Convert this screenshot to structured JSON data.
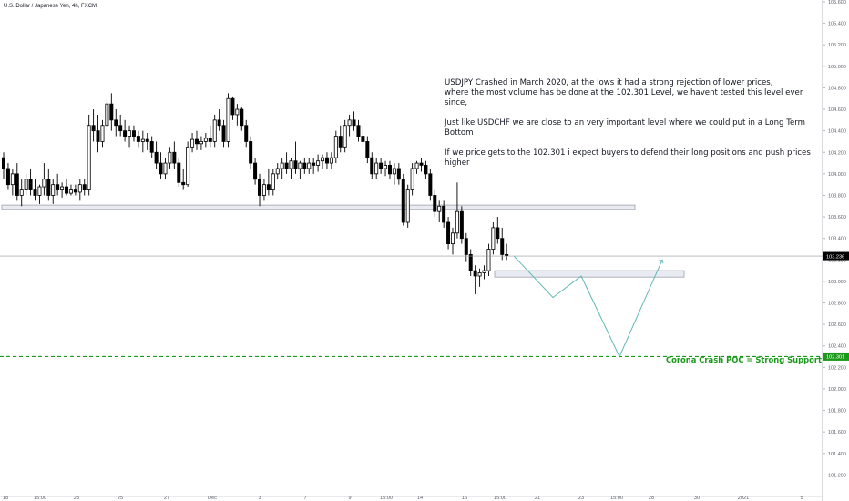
{
  "symbol_title": "U.S. Dollar / Japanese Yen, 4h, FXCM",
  "annotation": [
    "USDJPY Crashed in March 2020, at the lows it had a strong rejection of lower prices,\nwhere the most volume has be done at the 102.301 Level, we havent tested this level ever since,",
    "Just like USDCHF we are close to an very important level where we could put in a Long Term Bottom",
    "If we price gets to the 102.301 i expect buyers to defend their long positions and push prices higher"
  ],
  "support_label": "Corona Crash POC = Strong Support",
  "colors": {
    "candle": "#000000",
    "support": "#1a9a1a",
    "projection": "#5fb7b4",
    "zone_fill": "#e9ebf2",
    "zone_border": "#9aa0ab",
    "price_badge": "#000000",
    "support_badge": "#1a9a1a"
  },
  "chart_data": {
    "type": "candlestick",
    "title": "U.S. Dollar / Japanese Yen, 4h, FXCM",
    "ylim": [
      101.0,
      105.6
    ],
    "y_ticks": [
      "105.600",
      "105.400",
      "105.200",
      "105.000",
      "104.800",
      "104.600",
      "104.400",
      "104.200",
      "104.000",
      "103.800",
      "103.600",
      "103.400",
      "103.200",
      "103.000",
      "102.800",
      "102.600",
      "102.400",
      "102.200",
      "102.000",
      "101.800",
      "101.600",
      "101.400",
      "101.200"
    ],
    "x_ticks": [
      "18",
      "15:00",
      "23",
      "25",
      "27",
      "Dec",
      "3",
      "7",
      "9",
      "15:00",
      "14",
      "16",
      "15:00",
      "21",
      "23",
      "15:00",
      "28",
      "30",
      "2021",
      "5"
    ],
    "current_price": "103.236",
    "support_price": "102.301",
    "grid": false,
    "candles": [
      {
        "o": 104.15,
        "h": 104.2,
        "l": 103.95,
        "c": 104.05
      },
      {
        "o": 104.05,
        "h": 104.1,
        "l": 103.85,
        "c": 103.9
      },
      {
        "o": 103.9,
        "h": 104.05,
        "l": 103.8,
        "c": 104.0
      },
      {
        "o": 104.0,
        "h": 104.1,
        "l": 103.75,
        "c": 103.8
      },
      {
        "o": 103.8,
        "h": 103.95,
        "l": 103.7,
        "c": 103.85
      },
      {
        "o": 103.85,
        "h": 104.0,
        "l": 103.8,
        "c": 103.95
      },
      {
        "o": 103.95,
        "h": 104.05,
        "l": 103.8,
        "c": 103.85
      },
      {
        "o": 103.85,
        "h": 103.95,
        "l": 103.75,
        "c": 103.8
      },
      {
        "o": 103.8,
        "h": 103.9,
        "l": 103.72,
        "c": 103.88
      },
      {
        "o": 103.88,
        "h": 104.1,
        "l": 103.8,
        "c": 103.95
      },
      {
        "o": 103.95,
        "h": 104.05,
        "l": 103.75,
        "c": 103.8
      },
      {
        "o": 103.8,
        "h": 103.95,
        "l": 103.72,
        "c": 103.9
      },
      {
        "o": 103.9,
        "h": 104.0,
        "l": 103.8,
        "c": 103.85
      },
      {
        "o": 103.85,
        "h": 103.92,
        "l": 103.78,
        "c": 103.88
      },
      {
        "o": 103.88,
        "h": 103.95,
        "l": 103.8,
        "c": 103.82
      },
      {
        "o": 103.82,
        "h": 103.9,
        "l": 103.8,
        "c": 103.85
      },
      {
        "o": 103.85,
        "h": 103.9,
        "l": 103.8,
        "c": 103.83
      },
      {
        "o": 103.83,
        "h": 103.95,
        "l": 103.75,
        "c": 103.9
      },
      {
        "o": 103.9,
        "h": 103.95,
        "l": 103.8,
        "c": 103.85
      },
      {
        "o": 103.85,
        "h": 104.55,
        "l": 103.8,
        "c": 104.45
      },
      {
        "o": 104.45,
        "h": 104.6,
        "l": 104.3,
        "c": 104.4
      },
      {
        "o": 104.4,
        "h": 104.55,
        "l": 104.2,
        "c": 104.3
      },
      {
        "o": 104.3,
        "h": 104.5,
        "l": 104.25,
        "c": 104.45
      },
      {
        "o": 104.45,
        "h": 104.7,
        "l": 104.4,
        "c": 104.65
      },
      {
        "o": 104.65,
        "h": 104.75,
        "l": 104.4,
        "c": 104.5
      },
      {
        "o": 104.5,
        "h": 104.6,
        "l": 104.35,
        "c": 104.45
      },
      {
        "o": 104.45,
        "h": 104.55,
        "l": 104.35,
        "c": 104.4
      },
      {
        "o": 104.4,
        "h": 104.5,
        "l": 104.3,
        "c": 104.35
      },
      {
        "o": 104.35,
        "h": 104.45,
        "l": 104.25,
        "c": 104.4
      },
      {
        "o": 104.4,
        "h": 104.45,
        "l": 104.3,
        "c": 104.35
      },
      {
        "o": 104.35,
        "h": 104.4,
        "l": 104.25,
        "c": 104.3
      },
      {
        "o": 104.3,
        "h": 104.4,
        "l": 104.2,
        "c": 104.32
      },
      {
        "o": 104.32,
        "h": 104.38,
        "l": 104.22,
        "c": 104.3
      },
      {
        "o": 104.3,
        "h": 104.35,
        "l": 104.15,
        "c": 104.2
      },
      {
        "o": 104.2,
        "h": 104.3,
        "l": 104.05,
        "c": 104.1
      },
      {
        "o": 104.1,
        "h": 104.2,
        "l": 103.95,
        "c": 104.0
      },
      {
        "o": 104.0,
        "h": 104.15,
        "l": 103.95,
        "c": 104.1
      },
      {
        "o": 104.1,
        "h": 104.25,
        "l": 104.05,
        "c": 104.2
      },
      {
        "o": 104.2,
        "h": 104.3,
        "l": 104.05,
        "c": 104.1
      },
      {
        "o": 104.1,
        "h": 104.15,
        "l": 103.88,
        "c": 103.92
      },
      {
        "o": 103.92,
        "h": 104.05,
        "l": 103.85,
        "c": 103.9
      },
      {
        "o": 103.9,
        "h": 104.3,
        "l": 103.88,
        "c": 104.25
      },
      {
        "o": 104.25,
        "h": 104.38,
        "l": 104.2,
        "c": 104.32
      },
      {
        "o": 104.32,
        "h": 104.4,
        "l": 104.22,
        "c": 104.28
      },
      {
        "o": 104.28,
        "h": 104.35,
        "l": 104.22,
        "c": 104.3
      },
      {
        "o": 104.3,
        "h": 104.38,
        "l": 104.25,
        "c": 104.33
      },
      {
        "o": 104.33,
        "h": 104.45,
        "l": 104.25,
        "c": 104.3
      },
      {
        "o": 104.3,
        "h": 104.55,
        "l": 104.25,
        "c": 104.5
      },
      {
        "o": 104.5,
        "h": 104.6,
        "l": 104.4,
        "c": 104.45
      },
      {
        "o": 104.45,
        "h": 104.5,
        "l": 104.25,
        "c": 104.3
      },
      {
        "o": 104.3,
        "h": 104.75,
        "l": 104.25,
        "c": 104.7
      },
      {
        "o": 104.7,
        "h": 104.72,
        "l": 104.5,
        "c": 104.55
      },
      {
        "o": 104.55,
        "h": 104.65,
        "l": 104.45,
        "c": 104.6
      },
      {
        "o": 104.6,
        "h": 104.62,
        "l": 104.4,
        "c": 104.45
      },
      {
        "o": 104.45,
        "h": 104.5,
        "l": 104.25,
        "c": 104.3
      },
      {
        "o": 104.3,
        "h": 104.35,
        "l": 104.05,
        "c": 104.1
      },
      {
        "o": 104.1,
        "h": 104.15,
        "l": 103.9,
        "c": 103.95
      },
      {
        "o": 103.95,
        "h": 104.0,
        "l": 103.7,
        "c": 103.8
      },
      {
        "o": 103.8,
        "h": 103.95,
        "l": 103.75,
        "c": 103.9
      },
      {
        "o": 103.9,
        "h": 104.05,
        "l": 103.8,
        "c": 103.85
      },
      {
        "o": 103.85,
        "h": 104.05,
        "l": 103.8,
        "c": 104.0
      },
      {
        "o": 104.0,
        "h": 104.1,
        "l": 103.95,
        "c": 104.05
      },
      {
        "o": 104.05,
        "h": 104.15,
        "l": 103.95,
        "c": 104.1
      },
      {
        "o": 104.1,
        "h": 104.2,
        "l": 104.0,
        "c": 104.05
      },
      {
        "o": 104.05,
        "h": 104.15,
        "l": 103.95,
        "c": 104.12
      },
      {
        "o": 104.12,
        "h": 104.3,
        "l": 104.0,
        "c": 104.05
      },
      {
        "o": 104.05,
        "h": 104.12,
        "l": 103.95,
        "c": 104.1
      },
      {
        "o": 104.1,
        "h": 104.15,
        "l": 104.0,
        "c": 104.05
      },
      {
        "o": 104.05,
        "h": 104.15,
        "l": 104.0,
        "c": 104.1
      },
      {
        "o": 104.1,
        "h": 104.15,
        "l": 104.0,
        "c": 104.08
      },
      {
        "o": 104.08,
        "h": 104.18,
        "l": 104.02,
        "c": 104.12
      },
      {
        "o": 104.12,
        "h": 104.18,
        "l": 104.05,
        "c": 104.15
      },
      {
        "o": 104.15,
        "h": 104.2,
        "l": 104.05,
        "c": 104.1
      },
      {
        "o": 104.1,
        "h": 104.2,
        "l": 104.05,
        "c": 104.15
      },
      {
        "o": 104.15,
        "h": 104.4,
        "l": 104.1,
        "c": 104.35
      },
      {
        "o": 104.35,
        "h": 104.45,
        "l": 104.2,
        "c": 104.25
      },
      {
        "o": 104.25,
        "h": 104.5,
        "l": 104.2,
        "c": 104.45
      },
      {
        "o": 104.45,
        "h": 104.55,
        "l": 104.35,
        "c": 104.5
      },
      {
        "o": 104.5,
        "h": 104.58,
        "l": 104.4,
        "c": 104.45
      },
      {
        "o": 104.45,
        "h": 104.5,
        "l": 104.3,
        "c": 104.35
      },
      {
        "o": 104.35,
        "h": 104.45,
        "l": 104.25,
        "c": 104.3
      },
      {
        "o": 104.3,
        "h": 104.35,
        "l": 104.1,
        "c": 104.15
      },
      {
        "o": 104.15,
        "h": 104.2,
        "l": 103.95,
        "c": 104.0
      },
      {
        "o": 104.0,
        "h": 104.15,
        "l": 103.95,
        "c": 104.1
      },
      {
        "o": 104.1,
        "h": 104.15,
        "l": 104.0,
        "c": 104.05
      },
      {
        "o": 104.05,
        "h": 104.12,
        "l": 103.98,
        "c": 104.08
      },
      {
        "o": 104.08,
        "h": 104.12,
        "l": 103.95,
        "c": 104.0
      },
      {
        "o": 104.0,
        "h": 104.1,
        "l": 103.9,
        "c": 104.05
      },
      {
        "o": 104.05,
        "h": 104.1,
        "l": 103.9,
        "c": 103.95
      },
      {
        "o": 103.95,
        "h": 104.0,
        "l": 103.52,
        "c": 103.55
      },
      {
        "o": 103.55,
        "h": 103.9,
        "l": 103.5,
        "c": 103.85
      },
      {
        "o": 103.85,
        "h": 104.1,
        "l": 103.8,
        "c": 104.05
      },
      {
        "o": 104.05,
        "h": 104.12,
        "l": 104.0,
        "c": 104.1
      },
      {
        "o": 104.1,
        "h": 104.15,
        "l": 104.02,
        "c": 104.08
      },
      {
        "o": 104.08,
        "h": 104.12,
        "l": 103.95,
        "c": 104.0
      },
      {
        "o": 104.0,
        "h": 104.05,
        "l": 103.75,
        "c": 103.8
      },
      {
        "o": 103.8,
        "h": 103.85,
        "l": 103.6,
        "c": 103.65
      },
      {
        "o": 103.65,
        "h": 103.75,
        "l": 103.55,
        "c": 103.7
      },
      {
        "o": 103.7,
        "h": 103.75,
        "l": 103.5,
        "c": 103.55
      },
      {
        "o": 103.55,
        "h": 103.6,
        "l": 103.3,
        "c": 103.35
      },
      {
        "o": 103.35,
        "h": 103.5,
        "l": 103.25,
        "c": 103.45
      },
      {
        "o": 103.45,
        "h": 103.92,
        "l": 103.4,
        "c": 103.65
      },
      {
        "o": 103.65,
        "h": 103.7,
        "l": 103.35,
        "c": 103.4
      },
      {
        "o": 103.4,
        "h": 103.45,
        "l": 103.18,
        "c": 103.25
      },
      {
        "o": 103.25,
        "h": 103.3,
        "l": 103.05,
        "c": 103.1
      },
      {
        "o": 103.1,
        "h": 103.15,
        "l": 102.88,
        "c": 103.05
      },
      {
        "o": 103.05,
        "h": 103.12,
        "l": 102.95,
        "c": 103.08
      },
      {
        "o": 103.08,
        "h": 103.15,
        "l": 103.02,
        "c": 103.1
      },
      {
        "o": 103.1,
        "h": 103.35,
        "l": 103.05,
        "c": 103.3
      },
      {
        "o": 103.3,
        "h": 103.55,
        "l": 103.25,
        "c": 103.5
      },
      {
        "o": 103.5,
        "h": 103.6,
        "l": 103.35,
        "c": 103.4
      },
      {
        "o": 103.4,
        "h": 103.5,
        "l": 103.2,
        "c": 103.25
      },
      {
        "o": 103.25,
        "h": 103.35,
        "l": 103.2,
        "c": 103.24
      }
    ],
    "resistance_zone": [
      103.67,
      103.71
    ],
    "demand_zone": [
      103.04,
      103.1
    ],
    "projection_path": [
      103.236,
      102.85,
      103.05,
      102.3,
      103.2
    ]
  }
}
